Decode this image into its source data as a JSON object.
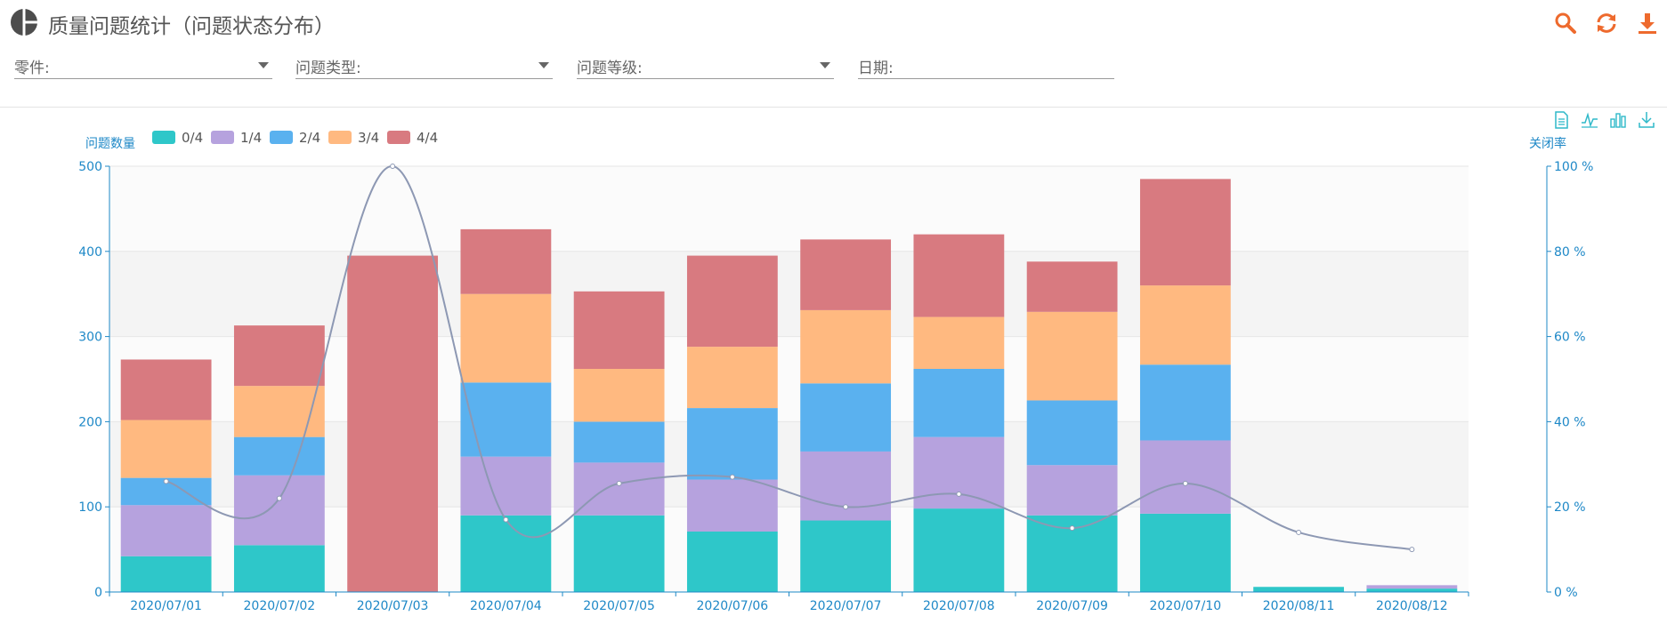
{
  "header": {
    "title": "质量问题统计（问题状态分布）",
    "tools": [
      "search-icon",
      "refresh-icon",
      "download-icon"
    ]
  },
  "filters": [
    {
      "label": "零件:",
      "has_dropdown": true
    },
    {
      "label": "问题类型:",
      "has_dropdown": true
    },
    {
      "label": "问题等级:",
      "has_dropdown": true
    },
    {
      "label": "日期:",
      "has_dropdown": false
    }
  ],
  "chart_tools": [
    "data-view-icon",
    "line-chart-icon",
    "bar-chart-icon",
    "save-image-icon"
  ],
  "colors": {
    "accent": "#ee6a2d",
    "axis": "#1e88c7",
    "toolbox": "#2fb9c9",
    "series": [
      "#2ec7c9",
      "#b6a2de",
      "#5ab1ef",
      "#ffb980",
      "#d87a80"
    ],
    "line": "#8d98b3"
  },
  "chart_data": {
    "type": "bar",
    "stacked": true,
    "categories": [
      "2020/07/01",
      "2020/07/02",
      "2020/07/03",
      "2020/07/04",
      "2020/07/05",
      "2020/07/06",
      "2020/07/07",
      "2020/07/08",
      "2020/07/09",
      "2020/07/10",
      "2020/08/11",
      "2020/08/12"
    ],
    "series": [
      {
        "name": "0/4",
        "values": [
          42,
          55,
          0,
          90,
          90,
          71,
          84,
          98,
          90,
          92,
          6,
          4
        ]
      },
      {
        "name": "1/4",
        "values": [
          60,
          82,
          0,
          69,
          62,
          61,
          81,
          84,
          59,
          86,
          0,
          4
        ]
      },
      {
        "name": "2/4",
        "values": [
          32,
          45,
          0,
          87,
          48,
          84,
          80,
          80,
          76,
          89,
          0,
          0
        ]
      },
      {
        "name": "3/4",
        "values": [
          68,
          60,
          0,
          104,
          62,
          72,
          86,
          61,
          104,
          93,
          0,
          0
        ]
      },
      {
        "name": "4/4",
        "values": [
          71,
          71,
          395,
          76,
          91,
          107,
          83,
          97,
          59,
          125,
          0,
          0
        ]
      }
    ],
    "line": {
      "axis": "right",
      "values": [
        26,
        22,
        100,
        17,
        25.5,
        27,
        20,
        23,
        15,
        25.5,
        14,
        10
      ]
    },
    "ylabel": "问题数量",
    "ylabel_right": "关闭率",
    "ylim": [
      0,
      500
    ],
    "yticks": [
      "0",
      "100",
      "200",
      "300",
      "400",
      "500"
    ],
    "ylim_right": [
      0,
      100
    ],
    "yticks_right": [
      "0 %",
      "20 %",
      "40 %",
      "60 %",
      "80 %",
      "100 %"
    ],
    "legend_position": "top-left",
    "grid": "alternating-bands"
  }
}
